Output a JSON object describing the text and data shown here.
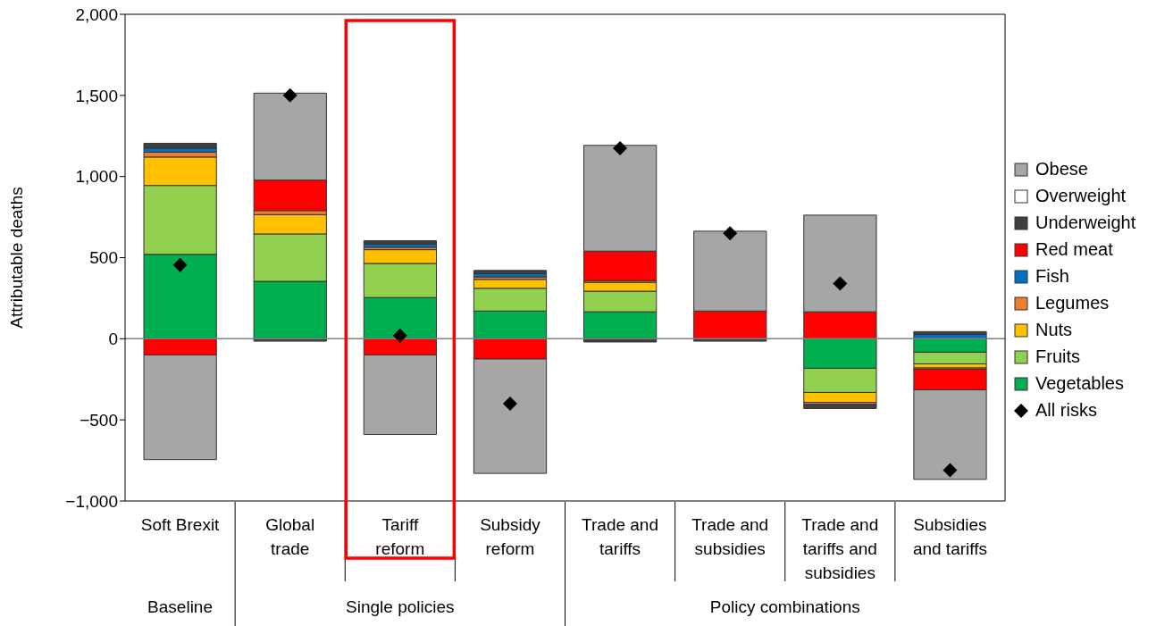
{
  "chart_data": {
    "type": "bar",
    "stacked": true,
    "ylabel": "Attributable deaths",
    "categories": [
      "Soft Brexit",
      "Global trade",
      "Tariff reform",
      "Subsidy reform",
      "Trade and tariffs",
      "Trade and subsidies",
      "Trade and tariffs and subsidies",
      "Subsidies and tariffs"
    ],
    "series": [
      {
        "name": "Vegetables",
        "color": "#00b050",
        "values": [
          520,
          354,
          254,
          171,
          166,
          null,
          -182,
          -83
        ]
      },
      {
        "name": "Fruits",
        "color": "#92d050",
        "values": [
          425,
          292,
          210,
          140,
          127,
          null,
          -149,
          -72
        ]
      },
      {
        "name": "Nuts",
        "color": "#ffc000",
        "values": [
          175,
          119,
          85,
          55,
          55,
          null,
          -61,
          -25
        ]
      },
      {
        "name": "Legumes",
        "color": "#ed7d31",
        "values": [
          30,
          25,
          15,
          15,
          10,
          null,
          -13,
          -8
        ]
      },
      {
        "name": "Fish",
        "color": "#0070c0",
        "values": [
          25,
          null,
          20,
          20,
          null,
          null,
          null,
          27
        ]
      },
      {
        "name": "Red meat",
        "color": "#ff0000",
        "values": [
          -100,
          188,
          -100,
          -125,
          182,
          171,
          166,
          -127
        ]
      },
      {
        "name": "Underweight",
        "color": "#404040",
        "values": [
          30,
          -15,
          20,
          20,
          -20,
          -15,
          -25,
          17
        ]
      },
      {
        "name": "Overweight",
        "color": "#ffffff",
        "values": [
          null,
          null,
          null,
          null,
          null,
          null,
          null,
          null
        ]
      },
      {
        "name": "Obese",
        "color": "#a6a6a6",
        "values": [
          -645,
          536,
          -490,
          -705,
          652,
          492,
          596,
          -552
        ]
      },
      {
        "name": "All risks",
        "type": "scatter",
        "marker": "diamond",
        "color": "#000000",
        "values": [
          455,
          1500,
          20,
          -400,
          1175,
          650,
          340,
          -810
        ]
      }
    ],
    "ylim": [
      -1000,
      2000
    ],
    "yticks": [
      {
        "value": -1000,
        "label": "−1,000"
      },
      {
        "value": -500,
        "label": "−500"
      },
      0,
      {
        "value": 500,
        "label": "500"
      },
      {
        "value": 1000,
        "label": "1,000"
      },
      {
        "value": 1500,
        "label": "1,500"
      },
      {
        "value": 2000,
        "label": "2,000"
      }
    ],
    "ref_lines": [
      {
        "axis": "y",
        "value": 0,
        "color": "#808080"
      }
    ],
    "annotations": [
      "Baseline",
      "Single policies",
      "Policy combinations"
    ],
    "legend": "right"
  }
}
